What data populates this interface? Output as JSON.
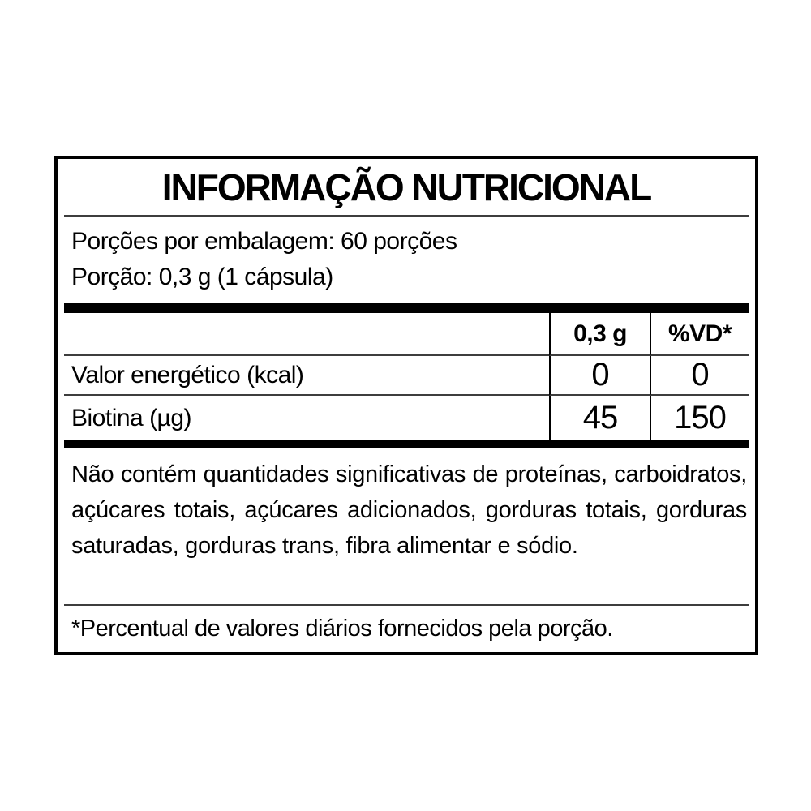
{
  "label": {
    "title": "INFORMAÇÃO NUTRICIONAL",
    "servings": {
      "per_package": "Porções por embalagem: 60 porções",
      "serving_size": "Porção: 0,3 g (1 cápsula)"
    },
    "table": {
      "amount_header": "0,3 g",
      "dv_header": "%VD*",
      "rows": [
        {
          "nutrient": "Valor energético (kcal)",
          "amount": "0",
          "dv": "0"
        },
        {
          "nutrient": "Biotina (µg)",
          "amount": "45",
          "dv": "150"
        }
      ]
    },
    "no_significant_note": "Não contém quantidades significativas de proteínas, carboidratos, açúcares totais, açúcares adicionados, gorduras totais, gorduras saturadas, gorduras trans, fibra alimentar e sódio.",
    "footnote": "*Percentual de valores diários fornecidos pela porção."
  },
  "colors": {
    "background": "#ffffff",
    "text": "#000000",
    "thick_bar": "#000000",
    "thin_rule": "#3d3d3d",
    "border": "#000000"
  }
}
